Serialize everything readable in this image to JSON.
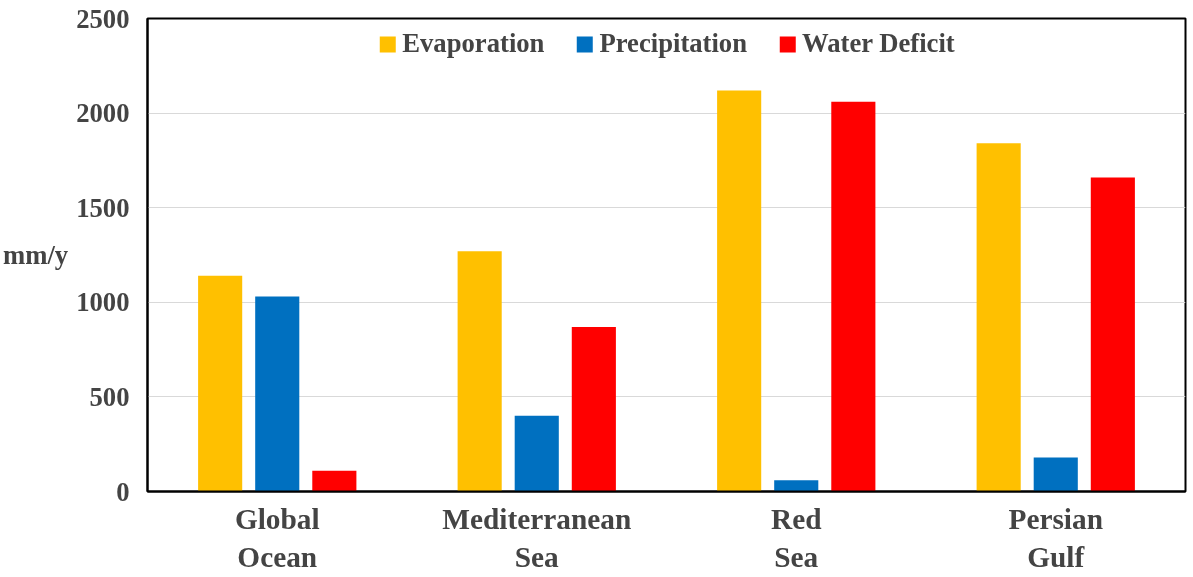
{
  "chart_data": {
    "type": "bar",
    "ylabel": "mm/y",
    "categories": [
      "Global\nOcean",
      "Mediterranean\nSea",
      "Red\nSea",
      "Persian\nGulf"
    ],
    "series": [
      {
        "name": "Evaporation",
        "color": "#ffc000",
        "values": [
          1140,
          1270,
          2120,
          1840
        ]
      },
      {
        "name": "Precipitation",
        "color": "#0070c0",
        "values": [
          1030,
          400,
          60,
          180
        ]
      },
      {
        "name": "Water Deficit",
        "color": "#ff0000",
        "values": [
          110,
          870,
          2060,
          1660
        ]
      }
    ],
    "ylim": [
      0,
      2500
    ],
    "yticks": [
      0,
      500,
      1000,
      1500,
      2000,
      2500
    ],
    "grid": "y",
    "legend": "top"
  }
}
